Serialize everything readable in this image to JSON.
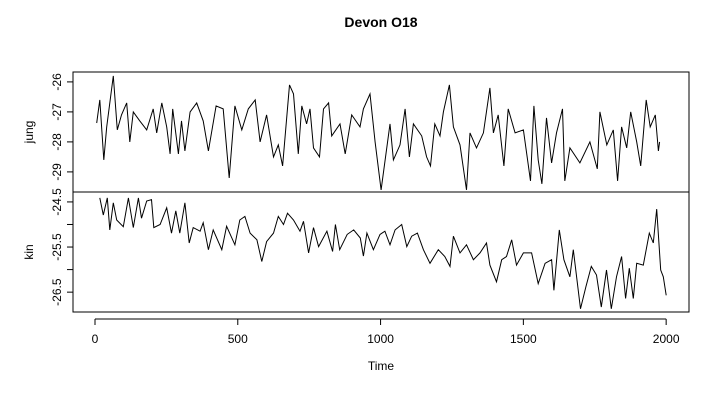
{
  "chart_data": {
    "type": "line",
    "title": "Devon O18",
    "xlabel": "Time",
    "xlim": [
      -77,
      2080
    ],
    "x_ticks": [
      0,
      500,
      1000,
      1500,
      2000
    ],
    "x_tick_labels": [
      "0",
      "500",
      "1000",
      "1500",
      "2000"
    ],
    "grid": false,
    "panels": [
      {
        "name": "jung",
        "ylabel": "jung",
        "ylim": [
          -29.67,
          -25.67
        ],
        "y_ticks": [
          -26,
          -27,
          -28,
          -29
        ],
        "y_tick_labels": [
          "-26",
          "-27",
          "-28",
          "-29"
        ],
        "x": [
          6,
          17,
          31,
          41,
          64,
          78,
          93,
          111,
          122,
          134,
          157,
          181,
          204,
          216,
          234,
          251,
          263,
          272,
          292,
          303,
          315,
          333,
          356,
          379,
          397,
          424,
          449,
          470,
          490,
          514,
          537,
          561,
          578,
          601,
          625,
          642,
          657,
          681,
          695,
          712,
          724,
          741,
          753,
          765,
          786,
          800,
          818,
          829,
          858,
          876,
          899,
          928,
          940,
          963,
          981,
          1002,
          1033,
          1045,
          1068,
          1086,
          1101,
          1115,
          1144,
          1161,
          1175,
          1190,
          1208,
          1220,
          1241,
          1255,
          1278,
          1301,
          1313,
          1336,
          1360,
          1383,
          1395,
          1412,
          1432,
          1447,
          1471,
          1500,
          1525,
          1537,
          1552,
          1565,
          1581,
          1599,
          1616,
          1637,
          1645,
          1663,
          1698,
          1733,
          1759,
          1768,
          1792,
          1815,
          1830,
          1844,
          1862,
          1876,
          1897,
          1911,
          1930,
          1944,
          1962,
          1973,
          1977
        ],
        "values": [
          -27.37,
          -26.6,
          -28.6,
          -27.5,
          -25.8,
          -27.6,
          -27.1,
          -26.7,
          -28.0,
          -27.0,
          -27.3,
          -27.6,
          -26.9,
          -27.7,
          -26.7,
          -27.5,
          -28.4,
          -26.9,
          -28.4,
          -27.3,
          -28.3,
          -27.0,
          -26.7,
          -27.3,
          -28.3,
          -26.8,
          -26.9,
          -29.2,
          -26.8,
          -27.6,
          -26.9,
          -26.6,
          -28.0,
          -27.1,
          -28.5,
          -28.1,
          -28.8,
          -26.1,
          -26.4,
          -28.4,
          -26.8,
          -27.4,
          -26.9,
          -28.2,
          -28.5,
          -26.9,
          -26.7,
          -27.8,
          -27.4,
          -28.4,
          -27.1,
          -27.5,
          -26.9,
          -26.4,
          -28.0,
          -29.6,
          -27.4,
          -28.6,
          -28.1,
          -26.9,
          -28.5,
          -27.4,
          -27.8,
          -28.5,
          -28.8,
          -27.4,
          -27.8,
          -27.0,
          -26.1,
          -27.5,
          -28.1,
          -29.6,
          -27.7,
          -28.2,
          -27.7,
          -26.2,
          -27.7,
          -27.1,
          -28.8,
          -26.9,
          -27.7,
          -27.6,
          -29.3,
          -26.8,
          -28.6,
          -29.4,
          -27.2,
          -28.7,
          -27.7,
          -26.9,
          -29.3,
          -28.2,
          -28.7,
          -28.0,
          -28.9,
          -27.0,
          -28.1,
          -27.6,
          -29.3,
          -27.5,
          -28.2,
          -27.0,
          -28.0,
          -28.8,
          -26.6,
          -27.5,
          -27.1,
          -28.3,
          -28.0
        ]
      },
      {
        "name": "kin",
        "ylabel": "kin",
        "ylim": [
          -26.94,
          -24.28
        ],
        "y_ticks": [
          -24.5,
          -25,
          -25.5,
          -26,
          -26.5
        ],
        "y_tick_labels": [
          "-24.5",
          "",
          "-25.5",
          "",
          "-26.5"
        ],
        "x": [
          17,
          29,
          43,
          52,
          64,
          76,
          99,
          117,
          134,
          152,
          163,
          181,
          198,
          206,
          228,
          251,
          268,
          283,
          297,
          315,
          330,
          344,
          368,
          379,
          397,
          414,
          444,
          461,
          490,
          507,
          525,
          543,
          567,
          584,
          601,
          625,
          642,
          660,
          674,
          695,
          718,
          730,
          748,
          765,
          783,
          812,
          832,
          842,
          857,
          883,
          906,
          929,
          940,
          952,
          975,
          998,
          1015,
          1033,
          1051,
          1074,
          1092,
          1109,
          1129,
          1150,
          1173,
          1202,
          1225,
          1243,
          1255,
          1278,
          1301,
          1325,
          1348,
          1371,
          1383,
          1406,
          1424,
          1441,
          1459,
          1476,
          1500,
          1529,
          1552,
          1576,
          1599,
          1607,
          1626,
          1642,
          1663,
          1675,
          1700,
          1719,
          1738,
          1756,
          1773,
          1791,
          1808,
          1826,
          1844,
          1858,
          1871,
          1885,
          1897,
          1920,
          1941,
          1955,
          1967,
          1981,
          1990,
          2000
        ],
        "values": [
          -24.41,
          -24.79,
          -24.41,
          -25.12,
          -24.52,
          -24.9,
          -25.05,
          -24.41,
          -25.07,
          -24.41,
          -24.86,
          -24.48,
          -24.45,
          -25.07,
          -25.0,
          -24.63,
          -25.19,
          -24.7,
          -25.19,
          -24.52,
          -25.41,
          -25.07,
          -25.15,
          -24.96,
          -25.56,
          -25.12,
          -25.56,
          -25.04,
          -25.45,
          -24.9,
          -24.82,
          -25.19,
          -25.34,
          -25.82,
          -25.38,
          -25.19,
          -24.82,
          -25.0,
          -24.75,
          -24.9,
          -25.15,
          -24.93,
          -25.63,
          -25.07,
          -25.49,
          -25.15,
          -25.6,
          -25.0,
          -25.56,
          -25.22,
          -25.12,
          -25.3,
          -25.7,
          -25.19,
          -25.56,
          -25.22,
          -25.15,
          -25.45,
          -25.12,
          -25.0,
          -25.49,
          -25.26,
          -25.19,
          -25.56,
          -25.86,
          -25.56,
          -25.71,
          -25.93,
          -25.26,
          -25.63,
          -25.45,
          -25.78,
          -25.63,
          -25.41,
          -25.9,
          -26.27,
          -25.78,
          -25.71,
          -25.34,
          -25.9,
          -25.63,
          -25.63,
          -26.31,
          -25.86,
          -25.78,
          -26.46,
          -25.12,
          -25.78,
          -26.16,
          -25.56,
          -26.87,
          -26.38,
          -25.93,
          -26.12,
          -26.83,
          -26.01,
          -26.87,
          -26.16,
          -25.71,
          -26.64,
          -25.97,
          -26.64,
          -25.86,
          -25.9,
          -25.19,
          -25.41,
          -24.66,
          -26.01,
          -26.16,
          -26.57
        ]
      }
    ]
  }
}
